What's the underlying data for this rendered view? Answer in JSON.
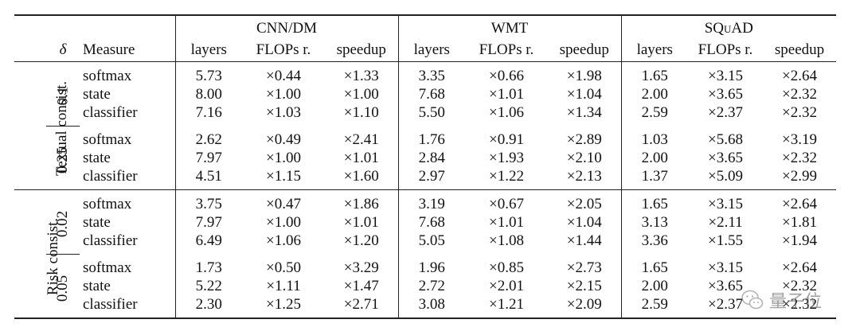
{
  "header": {
    "delta_label": "δ",
    "measure_label": "Measure",
    "datasets": [
      "CNN/DM",
      "WMT",
      "SQuAD"
    ],
    "columns": [
      "layers",
      "FLOPs r.",
      "speedup"
    ]
  },
  "groups": [
    {
      "label": "Textual consist.",
      "blocks": [
        {
          "delta": "0.1",
          "rows": [
            {
              "measure": "softmax",
              "cells": [
                {
                  "v": "5.73",
                  "b": true
                },
                {
                  "v": "×0.44",
                  "b": false
                },
                {
                  "v": "×1.33",
                  "b": true
                },
                {
                  "v": "3.35",
                  "b": true
                },
                {
                  "v": "×0.66",
                  "b": false
                },
                {
                  "v": "×1.98",
                  "b": true
                },
                {
                  "v": "1.65",
                  "b": true
                },
                {
                  "v": "×3.15",
                  "b": false
                },
                {
                  "v": "×2.64",
                  "b": true
                }
              ]
            },
            {
              "measure": "state",
              "cells": [
                {
                  "v": "8.00",
                  "b": false
                },
                {
                  "v": "×1.00",
                  "b": false
                },
                {
                  "v": "×1.00",
                  "b": false
                },
                {
                  "v": "7.68",
                  "b": false
                },
                {
                  "v": "×1.01",
                  "b": false
                },
                {
                  "v": "×1.04",
                  "b": false
                },
                {
                  "v": "2.00",
                  "b": false
                },
                {
                  "v": "×3.65",
                  "b": true
                },
                {
                  "v": "×2.32",
                  "b": false
                }
              ]
            },
            {
              "measure": "classifier",
              "cells": [
                {
                  "v": "7.16",
                  "b": false
                },
                {
                  "v": "×1.03",
                  "b": true
                },
                {
                  "v": "×1.10",
                  "b": false
                },
                {
                  "v": "5.50",
                  "b": false
                },
                {
                  "v": "×1.06",
                  "b": true
                },
                {
                  "v": "×1.34",
                  "b": false
                },
                {
                  "v": "2.59",
                  "b": false
                },
                {
                  "v": "×2.37",
                  "b": false
                },
                {
                  "v": "×2.32",
                  "b": false
                }
              ]
            }
          ]
        },
        {
          "delta": "0.25",
          "rows": [
            {
              "measure": "softmax",
              "cells": [
                {
                  "v": "2.62",
                  "b": true
                },
                {
                  "v": "×0.49",
                  "b": false
                },
                {
                  "v": "×2.41",
                  "b": true
                },
                {
                  "v": "1.76",
                  "b": true
                },
                {
                  "v": "×0.91",
                  "b": false
                },
                {
                  "v": "×2.89",
                  "b": true
                },
                {
                  "v": "1.03",
                  "b": true
                },
                {
                  "v": "×5.68",
                  "b": true
                },
                {
                  "v": "×3.19",
                  "b": true
                }
              ]
            },
            {
              "measure": "state",
              "cells": [
                {
                  "v": "7.97",
                  "b": false
                },
                {
                  "v": "×1.00",
                  "b": false
                },
                {
                  "v": "×1.01",
                  "b": false
                },
                {
                  "v": "2.84",
                  "b": false
                },
                {
                  "v": "×1.93",
                  "b": true
                },
                {
                  "v": "×2.10",
                  "b": false
                },
                {
                  "v": "2.00",
                  "b": false
                },
                {
                  "v": "×3.65",
                  "b": false
                },
                {
                  "v": "×2.32",
                  "b": false
                }
              ]
            },
            {
              "measure": "classifier",
              "cells": [
                {
                  "v": "4.51",
                  "b": false
                },
                {
                  "v": "×1.15",
                  "b": true
                },
                {
                  "v": "×1.60",
                  "b": false
                },
                {
                  "v": "2.97",
                  "b": false
                },
                {
                  "v": "×1.22",
                  "b": false
                },
                {
                  "v": "×2.13",
                  "b": false
                },
                {
                  "v": "1.37",
                  "b": false
                },
                {
                  "v": "×5.09",
                  "b": false
                },
                {
                  "v": "×2.99",
                  "b": false
                }
              ]
            }
          ]
        }
      ]
    },
    {
      "label": "Risk consist.",
      "blocks": [
        {
          "delta": "0.02",
          "rows": [
            {
              "measure": "softmax",
              "cells": [
                {
                  "v": "3.75",
                  "b": true
                },
                {
                  "v": "×0.47",
                  "b": false
                },
                {
                  "v": "×1.86",
                  "b": true
                },
                {
                  "v": "3.19",
                  "b": true
                },
                {
                  "v": "×0.67",
                  "b": false
                },
                {
                  "v": "×2.05",
                  "b": true
                },
                {
                  "v": "1.65",
                  "b": true
                },
                {
                  "v": "×3.15",
                  "b": true
                },
                {
                  "v": "×2.64",
                  "b": true
                }
              ]
            },
            {
              "measure": "state",
              "cells": [
                {
                  "v": "7.97",
                  "b": false
                },
                {
                  "v": "×1.00",
                  "b": false
                },
                {
                  "v": "×1.01",
                  "b": false
                },
                {
                  "v": "7.68",
                  "b": false
                },
                {
                  "v": "×1.01",
                  "b": false
                },
                {
                  "v": "×1.04",
                  "b": false
                },
                {
                  "v": "3.13",
                  "b": false
                },
                {
                  "v": "×2.11",
                  "b": false
                },
                {
                  "v": "×1.81",
                  "b": false
                }
              ]
            },
            {
              "measure": "classifier",
              "cells": [
                {
                  "v": "6.49",
                  "b": false
                },
                {
                  "v": "×1.06",
                  "b": true
                },
                {
                  "v": "×1.20",
                  "b": false
                },
                {
                  "v": "5.05",
                  "b": false
                },
                {
                  "v": "×1.08",
                  "b": true
                },
                {
                  "v": "×1.44",
                  "b": false
                },
                {
                  "v": "3.36",
                  "b": false
                },
                {
                  "v": "×1.55",
                  "b": false
                },
                {
                  "v": "×1.94",
                  "b": false
                }
              ]
            }
          ]
        },
        {
          "delta": "0.05",
          "rows": [
            {
              "measure": "softmax",
              "cells": [
                {
                  "v": "1.73",
                  "b": true
                },
                {
                  "v": "×0.50",
                  "b": false
                },
                {
                  "v": "×3.29",
                  "b": true
                },
                {
                  "v": "1.96",
                  "b": true
                },
                {
                  "v": "×0.85",
                  "b": false
                },
                {
                  "v": "×2.73",
                  "b": true
                },
                {
                  "v": "1.65",
                  "b": true
                },
                {
                  "v": "×3.15",
                  "b": false
                },
                {
                  "v": "×2.64",
                  "b": true
                }
              ]
            },
            {
              "measure": "state",
              "cells": [
                {
                  "v": "5.22",
                  "b": false
                },
                {
                  "v": "×1.11",
                  "b": false
                },
                {
                  "v": "×1.47",
                  "b": false
                },
                {
                  "v": "2.72",
                  "b": false
                },
                {
                  "v": "×2.01",
                  "b": true
                },
                {
                  "v": "×2.15",
                  "b": false
                },
                {
                  "v": "2.00",
                  "b": false
                },
                {
                  "v": "×3.65",
                  "b": true
                },
                {
                  "v": "×2.32",
                  "b": false
                }
              ]
            },
            {
              "measure": "classifier",
              "cells": [
                {
                  "v": "2.30",
                  "b": false
                },
                {
                  "v": "×1.25",
                  "b": true
                },
                {
                  "v": "×2.71",
                  "b": false
                },
                {
                  "v": "3.08",
                  "b": false
                },
                {
                  "v": "×1.21",
                  "b": false
                },
                {
                  "v": "×2.09",
                  "b": false
                },
                {
                  "v": "2.59",
                  "b": false
                },
                {
                  "v": "×2.37",
                  "b": false
                },
                {
                  "v": "×2.32",
                  "b": false
                }
              ]
            }
          ]
        }
      ]
    }
  ],
  "watermark": {
    "text": "量子位",
    "icon": "wechat-icon",
    "color": "#888888"
  }
}
